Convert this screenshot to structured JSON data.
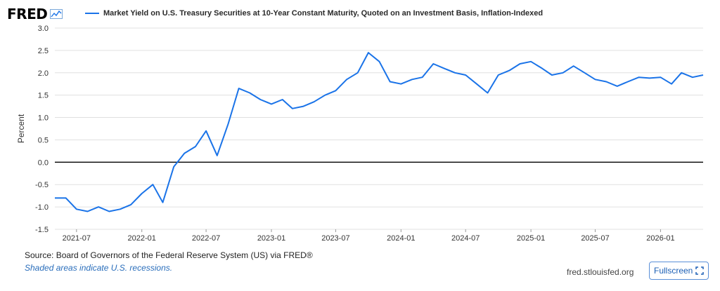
{
  "logo": {
    "text": "FRED"
  },
  "legend": {
    "label": "Market Yield on U.S. Treasury Securities at 10-Year Constant Maturity, Quoted on an Investment Basis, Inflation-Indexed"
  },
  "colors": {
    "series": "#1a73e8",
    "grid": "#e0e0e0",
    "zero_line": "#000000"
  },
  "footer": {
    "source": "Source: Board of Governors of the Federal Reserve System (US) via FRED®",
    "shaded": "Shaded areas indicate U.S. recessions.",
    "site": "fred.stlouisfed.org",
    "fullscreen_label": "Fullscreen"
  },
  "chart_data": {
    "type": "line",
    "title": "",
    "xlabel": "",
    "ylabel": "Percent",
    "ylim": [
      -1.5,
      3.0
    ],
    "yticks": [
      -1.5,
      -1.0,
      -0.5,
      0.0,
      0.5,
      1.0,
      1.5,
      2.0,
      2.5,
      3.0
    ],
    "xlim": [
      "2021-05-01",
      "2026-05-01"
    ],
    "xticks": [
      "2021-07",
      "2022-01",
      "2022-07",
      "2023-01",
      "2023-07",
      "2024-01",
      "2024-07",
      "2025-01",
      "2025-07",
      "2026-01"
    ],
    "grid": true,
    "series": [
      {
        "name": "Market Yield on U.S. Treasury Securities at 10-Year Constant Maturity, Quoted on an Investment Basis, Inflation-Indexed",
        "x": [
          "2021-05-01",
          "2021-06-01",
          "2021-07-01",
          "2021-08-01",
          "2021-09-01",
          "2021-10-01",
          "2021-11-01",
          "2021-12-01",
          "2022-01-01",
          "2022-02-01",
          "2022-03-01",
          "2022-04-01",
          "2022-05-01",
          "2022-06-01",
          "2022-07-01",
          "2022-08-01",
          "2022-09-01",
          "2022-10-01",
          "2022-11-01",
          "2022-12-01",
          "2023-01-01",
          "2023-02-01",
          "2023-03-01",
          "2023-04-01",
          "2023-05-01",
          "2023-06-01",
          "2023-07-01",
          "2023-08-01",
          "2023-09-01",
          "2023-10-01",
          "2023-11-01",
          "2023-12-01",
          "2024-01-01",
          "2024-02-01",
          "2024-03-01",
          "2024-04-01",
          "2024-05-01",
          "2024-06-01",
          "2024-07-01",
          "2024-08-01",
          "2024-09-01",
          "2024-10-01",
          "2024-11-01",
          "2024-12-01",
          "2025-01-01",
          "2025-02-01",
          "2025-03-01",
          "2025-04-01",
          "2025-05-01",
          "2025-06-01",
          "2025-07-01",
          "2025-08-01",
          "2025-09-01",
          "2025-10-01",
          "2025-11-01",
          "2025-12-01",
          "2026-01-01",
          "2026-02-01",
          "2026-03-01",
          "2026-04-01",
          "2026-05-01"
        ],
        "values": [
          -0.8,
          -0.8,
          -1.05,
          -1.1,
          -1.0,
          -1.1,
          -1.05,
          -0.95,
          -0.7,
          -0.5,
          -0.9,
          -0.1,
          0.2,
          0.35,
          0.7,
          0.15,
          0.85,
          1.65,
          1.55,
          1.4,
          1.3,
          1.4,
          1.2,
          1.25,
          1.35,
          1.5,
          1.6,
          1.85,
          2.0,
          2.45,
          2.25,
          1.8,
          1.75,
          1.85,
          1.9,
          2.2,
          2.1,
          2.0,
          1.95,
          1.75,
          1.55,
          1.95,
          2.05,
          2.2,
          2.25,
          2.1,
          1.95,
          2.0,
          2.15,
          2.0,
          1.85,
          1.8,
          1.7,
          1.8,
          1.9,
          1.88,
          1.9,
          1.75,
          2.0,
          1.9,
          1.95
        ]
      }
    ]
  }
}
